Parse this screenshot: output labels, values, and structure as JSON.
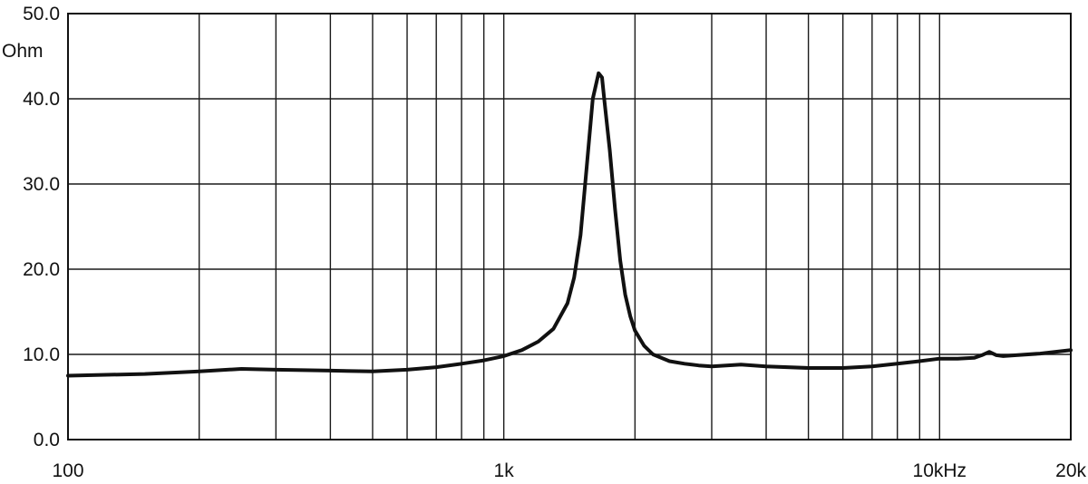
{
  "chart_data": {
    "type": "line",
    "x_scale": "log",
    "xlim": [
      100,
      20000
    ],
    "ylim": [
      0,
      50
    ],
    "grid": true,
    "y_unit": "Ohm",
    "x_ticks": [
      {
        "value": 100,
        "label": "100"
      },
      {
        "value": 1000,
        "label": "1k"
      },
      {
        "value": 10000,
        "label": "10kHz"
      },
      {
        "value": 20000,
        "label": "20k"
      }
    ],
    "x_gridlines": [
      200,
      300,
      400,
      500,
      600,
      700,
      800,
      900,
      1000,
      2000,
      3000,
      4000,
      5000,
      6000,
      7000,
      8000,
      9000,
      10000
    ],
    "y_ticks": [
      {
        "value": 0,
        "label": "0.0"
      },
      {
        "value": 10,
        "label": "10.0"
      },
      {
        "value": 20,
        "label": "20.0"
      },
      {
        "value": 30,
        "label": "30.0"
      },
      {
        "value": 40,
        "label": "40.0"
      },
      {
        "value": 50,
        "label": "50.0"
      }
    ],
    "series": [
      {
        "x": [
          100,
          150,
          200,
          250,
          300,
          400,
          500,
          600,
          700,
          800,
          900,
          1000,
          1100,
          1200,
          1300,
          1400,
          1450,
          1500,
          1550,
          1600,
          1650,
          1680,
          1700,
          1750,
          1800,
          1850,
          1900,
          1950,
          2000,
          2100,
          2200,
          2400,
          2600,
          2800,
          3000,
          3500,
          4000,
          5000,
          6000,
          7000,
          8000,
          9000,
          10000,
          11000,
          12000,
          12500,
          13000,
          13500,
          14000,
          15000,
          17000,
          20000
        ],
        "y": [
          7.5,
          7.7,
          8.0,
          8.3,
          8.2,
          8.1,
          8.0,
          8.2,
          8.5,
          8.9,
          9.3,
          9.8,
          10.5,
          11.5,
          13.0,
          16.0,
          19.0,
          24.0,
          32.0,
          40.0,
          43.0,
          42.5,
          40.0,
          34.0,
          27.0,
          21.0,
          17.0,
          14.5,
          12.8,
          11.0,
          10.0,
          9.2,
          8.9,
          8.7,
          8.6,
          8.8,
          8.6,
          8.4,
          8.4,
          8.6,
          8.9,
          9.2,
          9.5,
          9.5,
          9.6,
          9.9,
          10.3,
          9.9,
          9.8,
          9.9,
          10.1,
          10.5
        ]
      }
    ]
  }
}
